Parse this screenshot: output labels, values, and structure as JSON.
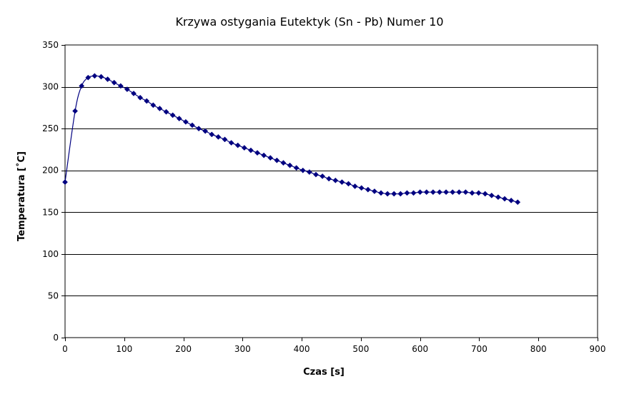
{
  "chart_data": {
    "type": "scatter",
    "title": "Krzywa ostygania Eutektyk (Sn - Pb) Numer 10",
    "xlabel": "Czas [s]",
    "ylabel": "Temperatura [˚C]",
    "xlim": [
      0,
      900
    ],
    "ylim": [
      0,
      350
    ],
    "xticks": [
      0,
      100,
      200,
      300,
      400,
      500,
      600,
      700,
      800,
      900
    ],
    "yticks": [
      0,
      50,
      100,
      150,
      200,
      250,
      300,
      350
    ],
    "grid": "horizontal",
    "legend": "none",
    "line": "smooth",
    "colors": {
      "series": "#000080",
      "gridline": "#000000",
      "axis": "#000000",
      "plot_border": "#000000"
    },
    "series": [
      {
        "x": [
          0,
          17,
          28,
          39,
          50,
          61,
          72,
          83,
          94,
          105,
          116,
          127,
          138,
          149,
          160,
          171,
          182,
          193,
          204,
          215,
          226,
          237,
          248,
          259,
          270,
          281,
          292,
          303,
          314,
          325,
          336,
          347,
          358,
          369,
          380,
          391,
          402,
          413,
          424,
          435,
          446,
          457,
          468,
          479,
          490,
          501,
          512,
          523,
          534,
          545,
          556,
          567,
          578,
          589,
          600,
          611,
          622,
          633,
          644,
          655,
          666,
          677,
          688,
          699,
          710,
          721,
          732,
          743,
          754,
          765
        ],
        "y": [
          186,
          271,
          301,
          311,
          313,
          312,
          309,
          305,
          301,
          297,
          292,
          287,
          283,
          278,
          274,
          270,
          266,
          262,
          258,
          254,
          250,
          247,
          243,
          240,
          237,
          233,
          230,
          227,
          224,
          221,
          218,
          215,
          212,
          209,
          206,
          203,
          200,
          198,
          195,
          193,
          190,
          188,
          186,
          184,
          181,
          179,
          177,
          175,
          173,
          172,
          172,
          172,
          173,
          173,
          174,
          174,
          174,
          174,
          174,
          174,
          174,
          174,
          173,
          173,
          172,
          170,
          168,
          166,
          164,
          162
        ]
      }
    ]
  }
}
